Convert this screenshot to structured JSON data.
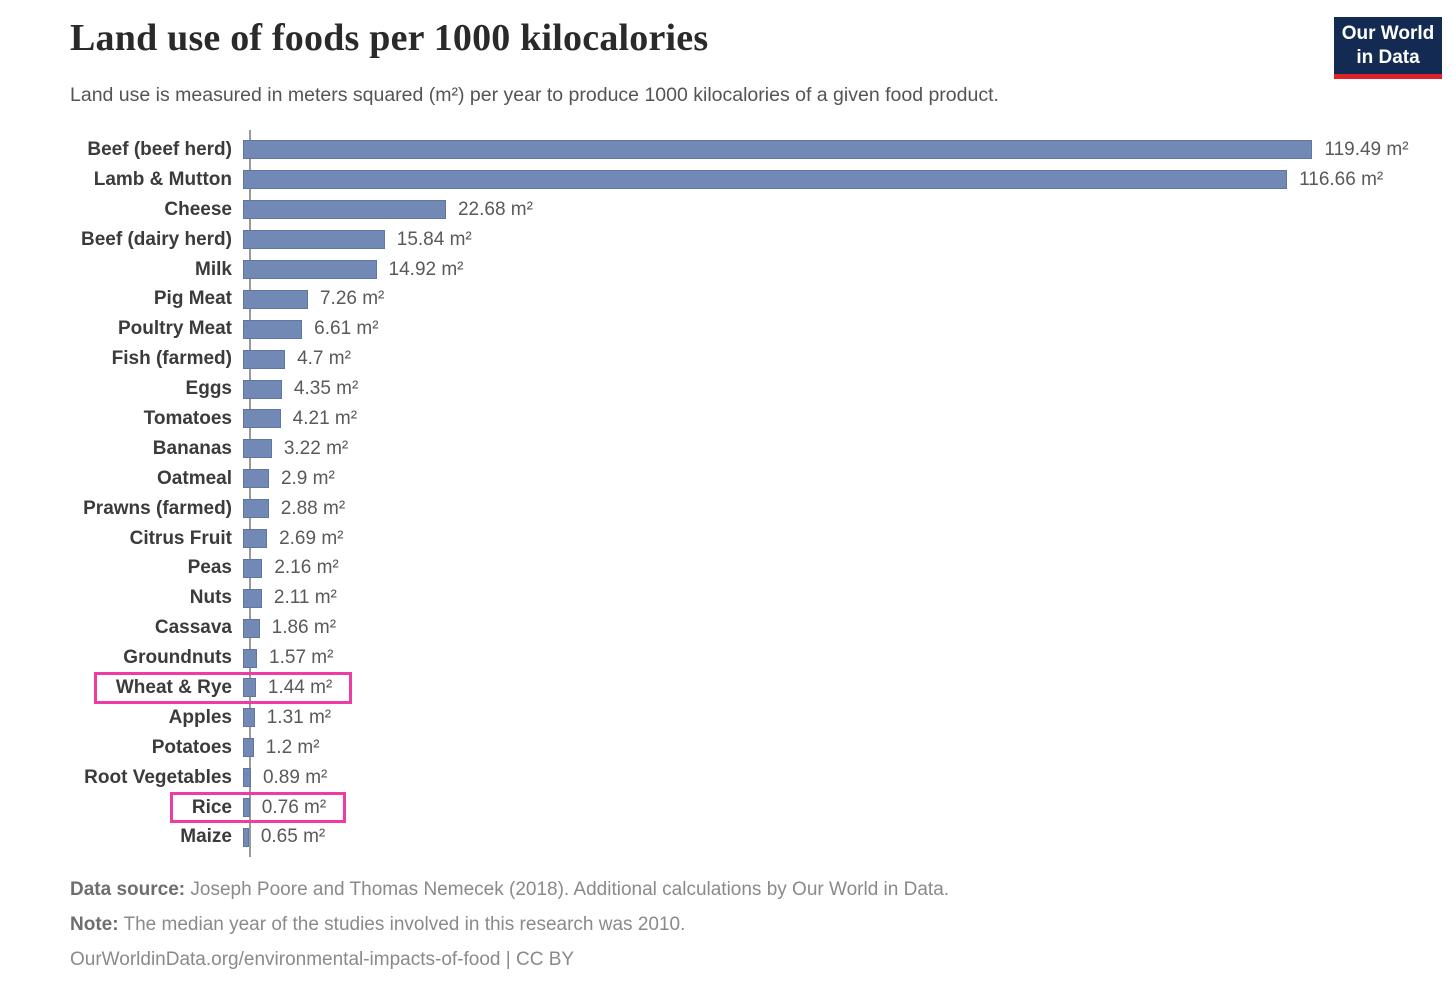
{
  "header": {
    "title": "Land use of foods per 1000 kilocalories",
    "subtitle": "Land use is measured in meters squared (m²) per year to produce 1000 kilocalories of a given food product.",
    "logo": {
      "line1": "Our World",
      "line2": "in Data",
      "bg_color": "#132b52",
      "accent_color": "#e0232a"
    }
  },
  "chart_data": {
    "type": "bar",
    "orientation": "horizontal",
    "title": "Land use of foods per 1000 kilocalories",
    "xlabel": "",
    "ylabel": "",
    "unit": "m²",
    "xlim": [
      0,
      125
    ],
    "grid": false,
    "legend": "none",
    "bar_color": "#7389b5",
    "highlight_color": "#ee3ca4",
    "categories": [
      "Beef (beef herd)",
      "Lamb & Mutton",
      "Cheese",
      "Beef (dairy herd)",
      "Milk",
      "Pig Meat",
      "Poultry Meat",
      "Fish (farmed)",
      "Eggs",
      "Tomatoes",
      "Bananas",
      "Oatmeal",
      "Prawns (farmed)",
      "Citrus Fruit",
      "Peas",
      "Nuts",
      "Cassava",
      "Groundnuts",
      "Wheat & Rye",
      "Apples",
      "Potatoes",
      "Root Vegetables",
      "Rice",
      "Maize"
    ],
    "values": [
      119.49,
      116.66,
      22.68,
      15.84,
      14.92,
      7.26,
      6.61,
      4.7,
      4.35,
      4.21,
      3.22,
      2.9,
      2.88,
      2.69,
      2.16,
      2.11,
      1.86,
      1.57,
      1.44,
      1.31,
      1.2,
      0.89,
      0.76,
      0.65
    ],
    "value_labels": [
      "119.49 m²",
      "116.66 m²",
      "22.68 m²",
      "15.84 m²",
      "14.92 m²",
      "7.26 m²",
      "6.61 m²",
      "4.7 m²",
      "4.35 m²",
      "4.21 m²",
      "3.22 m²",
      "2.9 m²",
      "2.88 m²",
      "2.69 m²",
      "2.16 m²",
      "2.11 m²",
      "1.86 m²",
      "1.57 m²",
      "1.44 m²",
      "1.31 m²",
      "1.2 m²",
      "0.89 m²",
      "0.76 m²",
      "0.65 m²"
    ],
    "highlighted_categories": [
      "Wheat & Rye",
      "Rice"
    ]
  },
  "footer": {
    "data_source_label": "Data source:",
    "data_source_text": " Joseph Poore and Thomas Nemecek (2018). Additional calculations by Our World in Data.",
    "note_label": "Note:",
    "note_text": " The median year of the studies involved in this research was 2010.",
    "link_text": "OurWorldinData.org/environmental-impacts-of-food | CC BY"
  }
}
